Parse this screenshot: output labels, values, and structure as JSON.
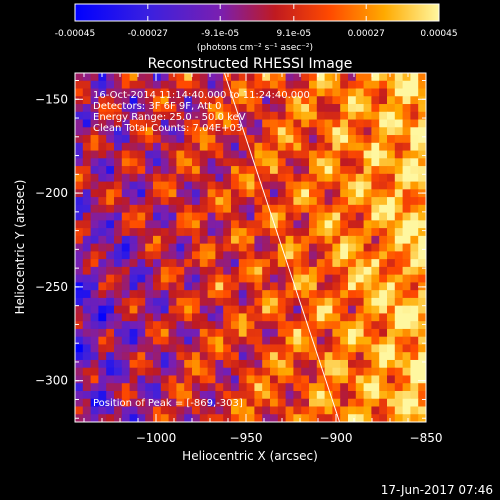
{
  "chart_data": {
    "type": "heatmap",
    "colorbar": {
      "tick_labels": [
        "-0.00045",
        "-0.00027",
        "-9.1e-05",
        "9.1e-05",
        "0.00027",
        "0.00045"
      ],
      "tick_values": [
        -0.00045,
        -0.00027,
        -9.1e-05,
        9.1e-05,
        0.00027,
        0.00045
      ],
      "range": [
        -0.00045,
        0.00045
      ],
      "unit_label": "(photons cm⁻² s⁻¹ asec⁻²)"
    },
    "title": "Reconstructed RHESSI Image",
    "xlabel": "Heliocentric X (arcsec)",
    "ylabel": "Heliocentric Y (arcsec)",
    "xlim": [
      -1045,
      -850
    ],
    "ylim": [
      -322,
      -136
    ],
    "x_ticks": [
      -1000,
      -950,
      -900,
      -850
    ],
    "y_ticks": [
      -150,
      -200,
      -250,
      -300
    ],
    "x_tick_labels": [
      "−1000",
      "−950",
      "−900",
      "−850"
    ],
    "y_tick_labels": [
      "−150",
      "−200",
      "−250",
      "−300"
    ],
    "limb_line": {
      "x": [
        -962,
        -898
      ],
      "y": [
        -136,
        -322
      ]
    },
    "annotations": [
      "16-Oct-2014 11:14:40.000 to 11:24:40.000",
      "Detectors: 3F 6F 9F, Att 0",
      "Energy Range: 25.0 - 50.0 keV",
      "Clean    Total Counts: 7.04E+03"
    ],
    "peak_label": "Position of Peak = [-869,-303]",
    "peak": {
      "x": -869,
      "y": -303
    },
    "timestamp": "17-Jun-2017 07:46"
  }
}
